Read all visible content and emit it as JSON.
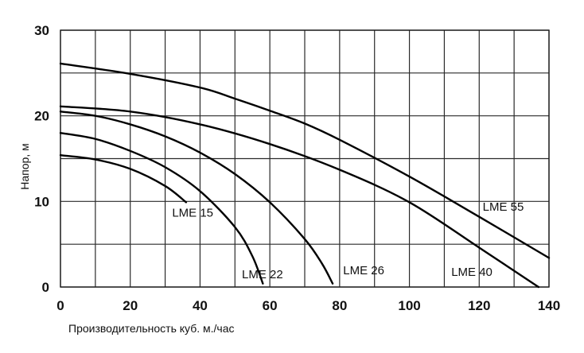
{
  "chart_data": {
    "type": "line",
    "title": "",
    "xlabel": "Производительность куб. м./час",
    "ylabel": "Напор, м",
    "xlim": [
      0,
      140
    ],
    "ylim": [
      0,
      30
    ],
    "x_ticks": [
      0,
      20,
      40,
      60,
      80,
      100,
      120,
      140
    ],
    "y_ticks": [
      0,
      10,
      20,
      30
    ],
    "grid": true,
    "grid_x_step": 10,
    "grid_y_step": 5,
    "series": [
      {
        "name": "LME 15",
        "points": [
          [
            0,
            15.4
          ],
          [
            10,
            14.9
          ],
          [
            20,
            13.8
          ],
          [
            30,
            11.8
          ],
          [
            36,
            9.9
          ]
        ],
        "label_at": [
          32,
          8.2
        ]
      },
      {
        "name": "LME 22",
        "points": [
          [
            0,
            18.0
          ],
          [
            10,
            17.3
          ],
          [
            20,
            15.9
          ],
          [
            30,
            14.0
          ],
          [
            40,
            11.2
          ],
          [
            50,
            7.0
          ],
          [
            55,
            3.6
          ],
          [
            58,
            0.4
          ]
        ],
        "label_at": [
          52,
          1.0
        ]
      },
      {
        "name": "LME 26",
        "points": [
          [
            0,
            20.5
          ],
          [
            10,
            20.0
          ],
          [
            20,
            19.0
          ],
          [
            30,
            17.6
          ],
          [
            40,
            15.7
          ],
          [
            50,
            13.2
          ],
          [
            60,
            9.9
          ],
          [
            70,
            5.6
          ],
          [
            75,
            2.7
          ],
          [
            78,
            0.4
          ]
        ],
        "label_at": [
          81,
          1.5
        ]
      },
      {
        "name": "LME 40",
        "points": [
          [
            0,
            21.1
          ],
          [
            20,
            20.5
          ],
          [
            40,
            19.0
          ],
          [
            60,
            16.7
          ],
          [
            80,
            13.7
          ],
          [
            100,
            9.9
          ],
          [
            120,
            4.6
          ],
          [
            137,
            0
          ]
        ],
        "label_at": [
          112,
          1.3
        ]
      },
      {
        "name": "LME 55",
        "points": [
          [
            0,
            26.1
          ],
          [
            20,
            24.9
          ],
          [
            40,
            23.3
          ],
          [
            50,
            22.0
          ],
          [
            60,
            20.6
          ],
          [
            70,
            19.1
          ],
          [
            80,
            17.2
          ],
          [
            100,
            12.9
          ],
          [
            120,
            8.2
          ],
          [
            140,
            3.4
          ]
        ],
        "label_at": [
          121,
          8.9
        ]
      }
    ]
  }
}
